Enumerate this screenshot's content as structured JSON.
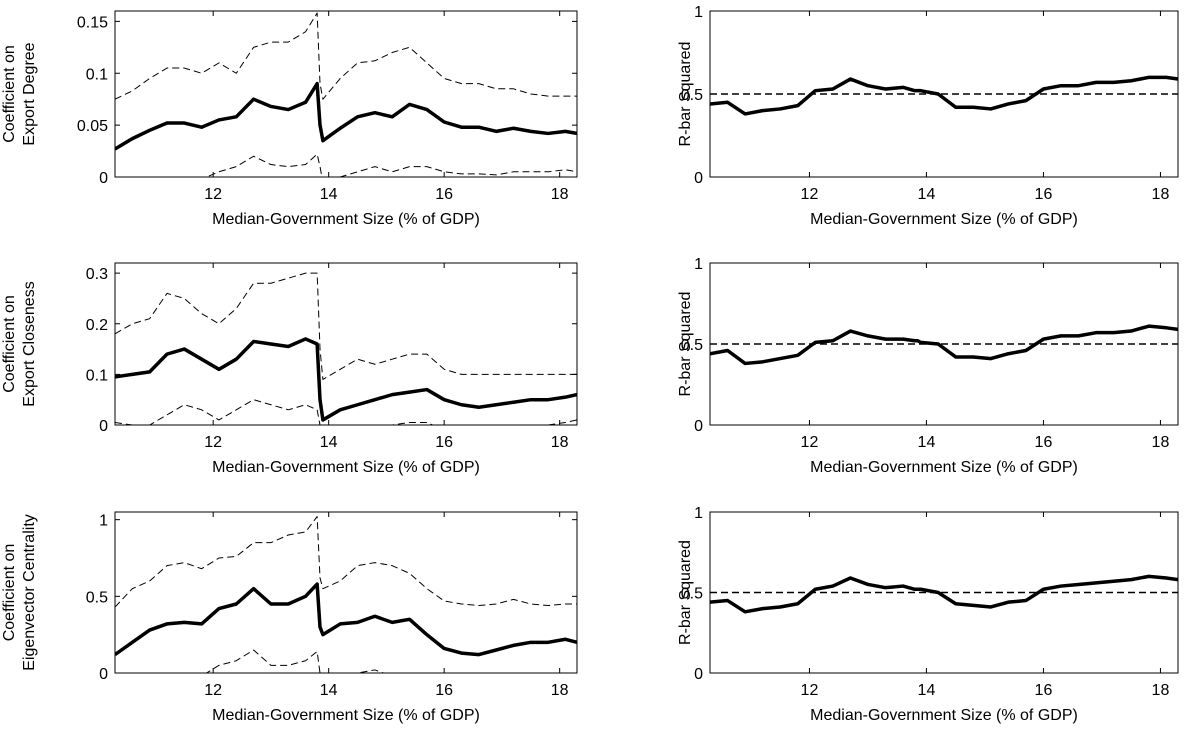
{
  "chart_data": [
    {
      "type": "line",
      "ylabel": [
        "Coefficient on",
        "Export Degree"
      ],
      "xlabel": "Median-Government Size (% of GDP)",
      "x": [
        10.3,
        10.6,
        10.9,
        11.2,
        11.5,
        11.8,
        12.1,
        12.4,
        12.7,
        13.0,
        13.3,
        13.6,
        13.8,
        13.85,
        13.9,
        14.2,
        14.5,
        14.8,
        15.1,
        15.4,
        15.7,
        16.0,
        16.3,
        16.6,
        16.9,
        17.2,
        17.5,
        17.8,
        18.1,
        18.3
      ],
      "series": [
        {
          "color": "#000000",
          "width": 3.5,
          "style": "solid",
          "values": [
            0.027,
            0.037,
            0.045,
            0.052,
            0.052,
            0.048,
            0.055,
            0.058,
            0.075,
            0.068,
            0.065,
            0.072,
            0.09,
            0.05,
            0.035,
            0.047,
            0.058,
            0.062,
            0.058,
            0.07,
            0.065,
            0.053,
            0.048,
            0.048,
            0.044,
            0.047,
            0.044,
            0.042,
            0.044,
            0.042
          ]
        },
        {
          "color": "#000000",
          "width": 1,
          "style": "dashed",
          "values": [
            0.075,
            0.083,
            0.095,
            0.105,
            0.105,
            0.1,
            0.11,
            0.1,
            0.125,
            0.13,
            0.13,
            0.14,
            0.158,
            0.09,
            0.075,
            0.095,
            0.11,
            0.112,
            0.12,
            0.125,
            0.11,
            0.095,
            0.09,
            0.09,
            0.085,
            0.085,
            0.08,
            0.078,
            0.078,
            0.078
          ]
        },
        {
          "color": "#000000",
          "width": 1,
          "style": "dashed",
          "values": [
            -0.02,
            -0.01,
            -0.005,
            0,
            0,
            -0.002,
            0.005,
            0.01,
            0.02,
            0.012,
            0.01,
            0.012,
            0.022,
            0.01,
            -0.005,
            0,
            0.005,
            0.01,
            0.005,
            0.01,
            0.01,
            0.005,
            0.003,
            0.003,
            0.002,
            0.005,
            0.005,
            0.005,
            0.007,
            0.005
          ]
        }
      ],
      "xlim": [
        10.3,
        18.3
      ],
      "xticks": [
        12,
        14,
        16,
        18
      ],
      "ylim": [
        0,
        0.16
      ],
      "yticks": [
        0,
        0.05,
        0.1,
        0.15
      ]
    },
    {
      "type": "line",
      "ylabel": [
        "R-bar Squared"
      ],
      "xlabel": "Median-Government Size (% of GDP)",
      "x": [
        10.3,
        10.6,
        10.9,
        11.2,
        11.5,
        11.8,
        12.1,
        12.4,
        12.7,
        13.0,
        13.3,
        13.6,
        13.8,
        13.85,
        13.9,
        14.2,
        14.5,
        14.8,
        15.1,
        15.4,
        15.7,
        16.0,
        16.3,
        16.6,
        16.9,
        17.2,
        17.5,
        17.8,
        18.1,
        18.3
      ],
      "series": [
        {
          "color": "#000000",
          "width": 3.5,
          "style": "solid",
          "values": [
            0.44,
            0.45,
            0.38,
            0.4,
            0.41,
            0.43,
            0.52,
            0.53,
            0.59,
            0.55,
            0.53,
            0.54,
            0.52,
            0.52,
            0.52,
            0.5,
            0.42,
            0.42,
            0.41,
            0.44,
            0.46,
            0.53,
            0.55,
            0.55,
            0.57,
            0.57,
            0.58,
            0.6,
            0.6,
            0.59
          ]
        }
      ],
      "hline": {
        "value": 0.5,
        "style": "dashed"
      },
      "xlim": [
        10.3,
        18.3
      ],
      "xticks": [
        12,
        14,
        16,
        18
      ],
      "ylim": [
        0,
        1
      ],
      "yticks": [
        0,
        0.5,
        1
      ]
    },
    {
      "type": "line",
      "ylabel": [
        "Coefficient on",
        "Export Closeness"
      ],
      "xlabel": "Median-Government Size (% of GDP)",
      "x": [
        10.3,
        10.6,
        10.9,
        11.2,
        11.5,
        11.8,
        12.1,
        12.4,
        12.7,
        13.0,
        13.3,
        13.6,
        13.8,
        13.85,
        13.9,
        14.2,
        14.5,
        14.8,
        15.1,
        15.4,
        15.7,
        16.0,
        16.3,
        16.6,
        16.9,
        17.2,
        17.5,
        17.8,
        18.1,
        18.3
      ],
      "series": [
        {
          "color": "#000000",
          "width": 3.5,
          "style": "solid",
          "values": [
            0.095,
            0.1,
            0.105,
            0.14,
            0.15,
            0.13,
            0.11,
            0.13,
            0.165,
            0.16,
            0.155,
            0.17,
            0.16,
            0.05,
            0.01,
            0.03,
            0.04,
            0.05,
            0.06,
            0.065,
            0.07,
            0.05,
            0.04,
            0.035,
            0.04,
            0.045,
            0.05,
            0.05,
            0.055,
            0.06
          ]
        },
        {
          "color": "#000000",
          "width": 1,
          "style": "dashed",
          "values": [
            0.18,
            0.2,
            0.21,
            0.26,
            0.25,
            0.22,
            0.2,
            0.23,
            0.28,
            0.28,
            0.29,
            0.3,
            0.3,
            0.15,
            0.09,
            0.11,
            0.13,
            0.12,
            0.13,
            0.14,
            0.14,
            0.11,
            0.1,
            0.1,
            0.1,
            0.1,
            0.1,
            0.1,
            0.1,
            0.1
          ]
        },
        {
          "color": "#000000",
          "width": 1,
          "style": "dashed",
          "values": [
            0.005,
            0,
            0,
            0.02,
            0.04,
            0.03,
            0.01,
            0.03,
            0.05,
            0.04,
            0.03,
            0.04,
            0.03,
            0,
            -0.05,
            -0.03,
            -0.02,
            -0.01,
            0,
            0.005,
            0.005,
            -0.01,
            -0.02,
            -0.02,
            -0.01,
            -0.01,
            0,
            0,
            0.005,
            0.01
          ]
        }
      ],
      "xlim": [
        10.3,
        18.3
      ],
      "xticks": [
        12,
        14,
        16,
        18
      ],
      "ylim": [
        0,
        0.32
      ],
      "yticks": [
        0,
        0.1,
        0.2,
        0.3
      ]
    },
    {
      "type": "line",
      "ylabel": [
        "R-bar Squared"
      ],
      "xlabel": "Median-Government Size (% of GDP)",
      "x": [
        10.3,
        10.6,
        10.9,
        11.2,
        11.5,
        11.8,
        12.1,
        12.4,
        12.7,
        13.0,
        13.3,
        13.6,
        13.8,
        13.85,
        13.9,
        14.2,
        14.5,
        14.8,
        15.1,
        15.4,
        15.7,
        16.0,
        16.3,
        16.6,
        16.9,
        17.2,
        17.5,
        17.8,
        18.1,
        18.3
      ],
      "series": [
        {
          "color": "#000000",
          "width": 3.5,
          "style": "solid",
          "values": [
            0.44,
            0.46,
            0.38,
            0.39,
            0.41,
            0.43,
            0.51,
            0.52,
            0.58,
            0.55,
            0.53,
            0.53,
            0.52,
            0.52,
            0.51,
            0.5,
            0.42,
            0.42,
            0.41,
            0.44,
            0.46,
            0.53,
            0.55,
            0.55,
            0.57,
            0.57,
            0.58,
            0.61,
            0.6,
            0.59
          ]
        }
      ],
      "hline": {
        "value": 0.5,
        "style": "dashed"
      },
      "xlim": [
        10.3,
        18.3
      ],
      "xticks": [
        12,
        14,
        16,
        18
      ],
      "ylim": [
        0,
        1
      ],
      "yticks": [
        0,
        0.5,
        1
      ]
    },
    {
      "type": "line",
      "ylabel": [
        "Coefficient on",
        "Eigenvector Centrality"
      ],
      "xlabel": "Median-Government Size (% of GDP)",
      "x": [
        10.3,
        10.6,
        10.9,
        11.2,
        11.5,
        11.8,
        12.1,
        12.4,
        12.7,
        13.0,
        13.3,
        13.6,
        13.8,
        13.85,
        13.9,
        14.2,
        14.5,
        14.8,
        15.1,
        15.4,
        15.7,
        16.0,
        16.3,
        16.6,
        16.9,
        17.2,
        17.5,
        17.8,
        18.1,
        18.3
      ],
      "series": [
        {
          "color": "#000000",
          "width": 3.5,
          "style": "solid",
          "values": [
            0.12,
            0.2,
            0.28,
            0.32,
            0.33,
            0.32,
            0.42,
            0.45,
            0.55,
            0.45,
            0.45,
            0.5,
            0.58,
            0.3,
            0.25,
            0.32,
            0.33,
            0.37,
            0.33,
            0.35,
            0.25,
            0.16,
            0.13,
            0.12,
            0.15,
            0.18,
            0.2,
            0.2,
            0.22,
            0.2
          ]
        },
        {
          "color": "#000000",
          "width": 1,
          "style": "dashed",
          "values": [
            0.43,
            0.55,
            0.6,
            0.7,
            0.72,
            0.68,
            0.75,
            0.76,
            0.85,
            0.85,
            0.9,
            0.92,
            1.02,
            0.62,
            0.55,
            0.6,
            0.7,
            0.72,
            0.7,
            0.65,
            0.55,
            0.47,
            0.45,
            0.44,
            0.45,
            0.48,
            0.45,
            0.44,
            0.45,
            0.45
          ]
        },
        {
          "color": "#000000",
          "width": 1,
          "style": "dashed",
          "values": [
            -0.2,
            -0.1,
            -0.05,
            0,
            0,
            -0.02,
            0.05,
            0.08,
            0.15,
            0.05,
            0.05,
            0.08,
            0.14,
            0,
            -0.05,
            0,
            0,
            0.02,
            -0.02,
            0,
            -0.03,
            -0.1,
            -0.15,
            -0.15,
            -0.12,
            -0.1,
            -0.06,
            -0.05,
            -0.02,
            -0.03
          ]
        }
      ],
      "xlim": [
        10.3,
        18.3
      ],
      "xticks": [
        12,
        14,
        16,
        18
      ],
      "ylim": [
        0,
        1.05
      ],
      "yticks": [
        0,
        0.5,
        1
      ]
    },
    {
      "type": "line",
      "ylabel": [
        "R-bar Squared"
      ],
      "xlabel": "Median-Government Size (% of GDP)",
      "x": [
        10.3,
        10.6,
        10.9,
        11.2,
        11.5,
        11.8,
        12.1,
        12.4,
        12.7,
        13.0,
        13.3,
        13.6,
        13.8,
        13.85,
        13.9,
        14.2,
        14.5,
        14.8,
        15.1,
        15.4,
        15.7,
        16.0,
        16.3,
        16.6,
        16.9,
        17.2,
        17.5,
        17.8,
        18.1,
        18.3
      ],
      "series": [
        {
          "color": "#000000",
          "width": 3.5,
          "style": "solid",
          "values": [
            0.44,
            0.45,
            0.38,
            0.4,
            0.41,
            0.43,
            0.52,
            0.54,
            0.59,
            0.55,
            0.53,
            0.54,
            0.52,
            0.52,
            0.52,
            0.5,
            0.43,
            0.42,
            0.41,
            0.44,
            0.45,
            0.52,
            0.54,
            0.55,
            0.56,
            0.57,
            0.58,
            0.6,
            0.59,
            0.58
          ]
        }
      ],
      "hline": {
        "value": 0.5,
        "style": "dashed"
      },
      "xlim": [
        10.3,
        18.3
      ],
      "xticks": [
        12,
        14,
        16,
        18
      ],
      "ylim": [
        0,
        1
      ],
      "yticks": [
        0,
        0.5,
        1
      ]
    }
  ]
}
